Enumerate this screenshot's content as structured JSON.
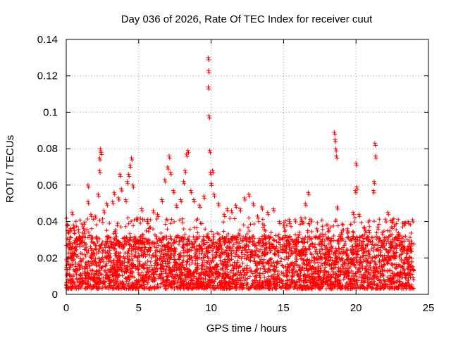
{
  "chart_data": {
    "type": "scatter",
    "title": "Day 036 of 2026, Rate Of TEC Index for receiver cuut",
    "xlabel": "GPS time / hours",
    "ylabel": "ROTI / TECUs",
    "xlim": [
      0,
      25
    ],
    "ylim": [
      0,
      0.14
    ],
    "xticks": [
      0,
      5,
      10,
      15,
      20,
      25
    ],
    "xtick_labels": [
      "0",
      "5",
      "10",
      "15",
      "20",
      "25"
    ],
    "yticks": [
      0,
      0.02,
      0.04,
      0.06,
      0.08,
      0.1,
      0.12,
      0.14
    ],
    "ytick_labels": [
      "0",
      "0.02",
      "0.04",
      "0.06",
      "0.08",
      "0.1",
      "0.12",
      "0.14"
    ],
    "grid": true,
    "marker": "+",
    "color": "#ff0000",
    "series": [
      {
        "name": "ROTI",
        "points": [
          [
            0.1,
            0.035
          ],
          [
            0.2,
            0.03
          ],
          [
            0.3,
            0.036
          ],
          [
            0.4,
            0.045
          ],
          [
            0.5,
            0.038
          ],
          [
            0.9,
            0.032
          ],
          [
            1.2,
            0.036
          ],
          [
            1.5,
            0.051
          ],
          [
            1.5,
            0.06
          ],
          [
            1.7,
            0.044
          ],
          [
            2.0,
            0.043
          ],
          [
            2.2,
            0.055
          ],
          [
            2.3,
            0.068
          ],
          [
            2.3,
            0.075
          ],
          [
            2.35,
            0.08
          ],
          [
            2.4,
            0.078
          ],
          [
            2.6,
            0.046
          ],
          [
            2.8,
            0.05
          ],
          [
            3.2,
            0.051
          ],
          [
            3.3,
            0.056
          ],
          [
            3.6,
            0.053
          ],
          [
            3.7,
            0.066
          ],
          [
            3.8,
            0.058
          ],
          [
            4.1,
            0.052
          ],
          [
            4.2,
            0.062
          ],
          [
            4.3,
            0.066
          ],
          [
            4.4,
            0.071
          ],
          [
            4.5,
            0.075
          ],
          [
            4.6,
            0.06
          ],
          [
            4.9,
            0.042
          ],
          [
            5.2,
            0.047
          ],
          [
            5.6,
            0.04
          ],
          [
            6.0,
            0.046
          ],
          [
            6.3,
            0.044
          ],
          [
            6.6,
            0.052
          ],
          [
            6.8,
            0.063
          ],
          [
            7.0,
            0.07
          ],
          [
            7.1,
            0.076
          ],
          [
            7.2,
            0.067
          ],
          [
            7.4,
            0.057
          ],
          [
            7.6,
            0.049
          ],
          [
            7.9,
            0.052
          ],
          [
            8.1,
            0.062
          ],
          [
            8.2,
            0.068
          ],
          [
            8.3,
            0.077
          ],
          [
            8.4,
            0.079
          ],
          [
            8.6,
            0.057
          ],
          [
            8.8,
            0.052
          ],
          [
            9.2,
            0.049
          ],
          [
            9.5,
            0.054
          ],
          [
            9.8,
            0.13
          ],
          [
            9.82,
            0.123
          ],
          [
            9.8,
            0.114
          ],
          [
            9.85,
            0.098
          ],
          [
            9.9,
            0.079
          ],
          [
            9.95,
            0.067
          ],
          [
            10.0,
            0.061
          ],
          [
            10.1,
            0.068
          ],
          [
            10.2,
            0.055
          ],
          [
            10.5,
            0.05
          ],
          [
            10.9,
            0.044
          ],
          [
            11.1,
            0.047
          ],
          [
            11.4,
            0.046
          ],
          [
            11.7,
            0.049
          ],
          [
            12.0,
            0.047
          ],
          [
            12.3,
            0.053
          ],
          [
            12.6,
            0.055
          ],
          [
            12.9,
            0.05
          ],
          [
            13.2,
            0.043
          ],
          [
            13.5,
            0.048
          ],
          [
            13.9,
            0.045
          ],
          [
            14.3,
            0.047
          ],
          [
            14.7,
            0.04
          ],
          [
            15.0,
            0.038
          ],
          [
            15.4,
            0.04
          ],
          [
            15.8,
            0.041
          ],
          [
            16.2,
            0.042
          ],
          [
            16.5,
            0.05
          ],
          [
            16.7,
            0.056
          ],
          [
            16.9,
            0.041
          ],
          [
            17.3,
            0.036
          ],
          [
            17.7,
            0.033
          ],
          [
            18.1,
            0.036
          ],
          [
            18.5,
            0.089
          ],
          [
            18.55,
            0.085
          ],
          [
            18.6,
            0.08
          ],
          [
            18.65,
            0.076
          ],
          [
            18.7,
            0.048
          ],
          [
            19.0,
            0.034
          ],
          [
            19.4,
            0.036
          ],
          [
            19.8,
            0.045
          ],
          [
            19.95,
            0.057
          ],
          [
            20.0,
            0.072
          ],
          [
            20.05,
            0.059
          ],
          [
            20.2,
            0.044
          ],
          [
            20.6,
            0.036
          ],
          [
            20.9,
            0.035
          ],
          [
            21.2,
            0.057
          ],
          [
            21.25,
            0.062
          ],
          [
            21.3,
            0.083
          ],
          [
            21.35,
            0.076
          ],
          [
            21.5,
            0.037
          ],
          [
            21.8,
            0.034
          ],
          [
            22.2,
            0.045
          ],
          [
            22.5,
            0.041
          ],
          [
            22.9,
            0.033
          ],
          [
            23.3,
            0.039
          ],
          [
            23.6,
            0.04
          ],
          [
            23.9,
            0.041
          ]
        ]
      }
    ],
    "dense_band": {
      "description": "dense background scatter of per-satellite ROTI values",
      "x_range": [
        0,
        24
      ],
      "y_range": [
        0.003,
        0.032
      ]
    }
  }
}
